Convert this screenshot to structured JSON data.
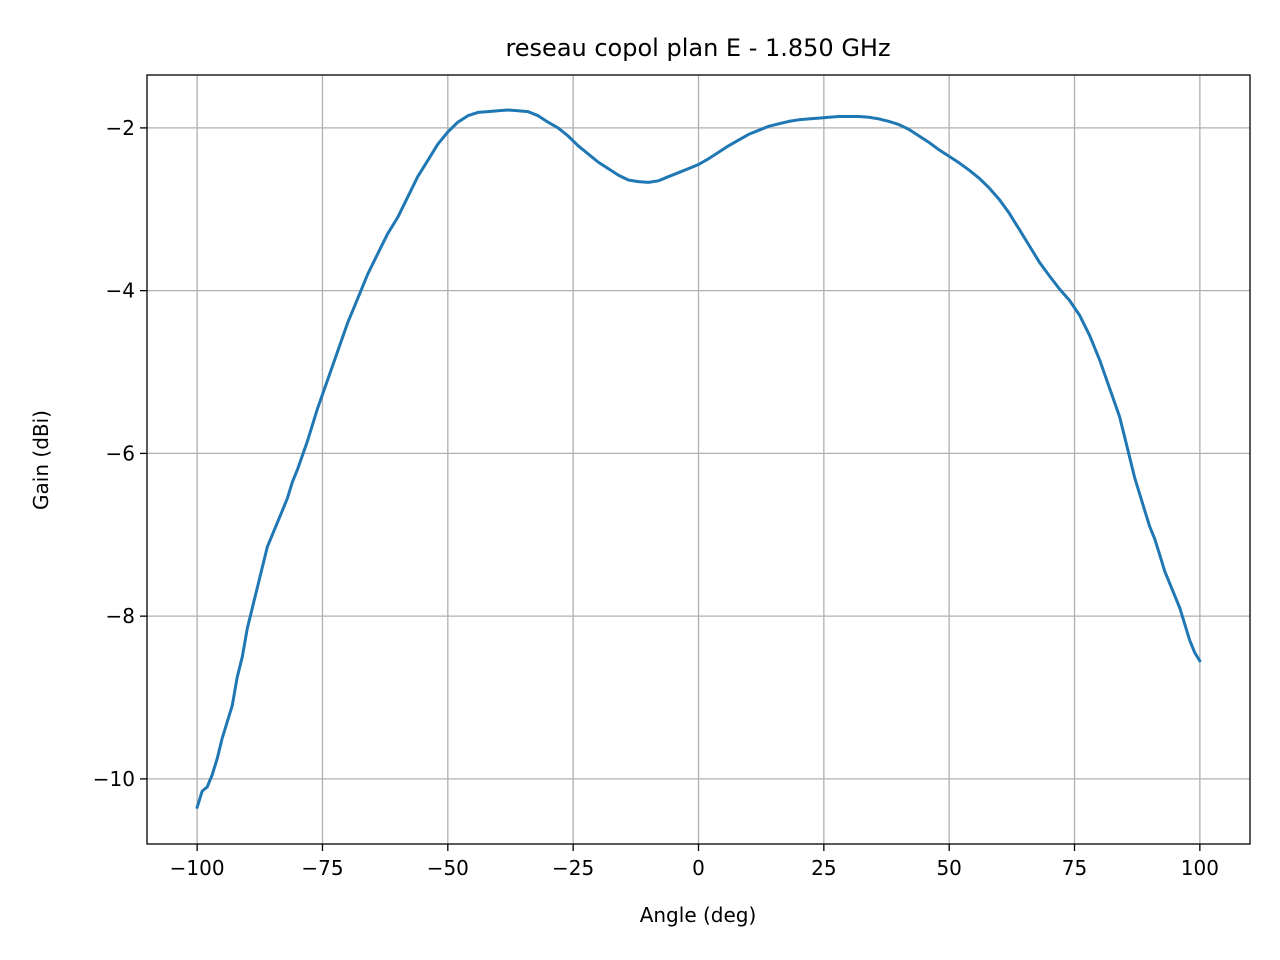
{
  "chart_data": {
    "type": "line",
    "title": "reseau copol plan E - 1.850 GHz",
    "xlabel": "Angle (deg)",
    "ylabel": "Gain (dBi)",
    "xlim": [
      -110,
      110
    ],
    "ylim": [
      -10.8,
      -1.35
    ],
    "grid": true,
    "line_color": "#1f77b4",
    "grid_color": "#b0b0b0",
    "x_ticks": [
      -100,
      -75,
      -50,
      -25,
      0,
      25,
      50,
      75,
      100
    ],
    "x_tick_labels": [
      "−100",
      "−75",
      "−50",
      "−25",
      "0",
      "25",
      "50",
      "75",
      "100"
    ],
    "y_ticks": [
      -10,
      -8,
      -6,
      -4,
      -2
    ],
    "y_tick_labels": [
      "−10",
      "−8",
      "−6",
      "−4",
      "−2"
    ],
    "series": [
      {
        "x": [
          -100,
          -99,
          -98,
          -97,
          -96,
          -95,
          -94,
          -93,
          -92,
          -91,
          -90,
          -89,
          -88,
          -87,
          -86,
          -85,
          -84,
          -83,
          -82,
          -81,
          -80,
          -78,
          -76,
          -74,
          -72,
          -70,
          -68,
          -66,
          -64,
          -62,
          -60,
          -58,
          -56,
          -54,
          -52,
          -50,
          -48,
          -46,
          -44,
          -42,
          -40,
          -38,
          -36,
          -34,
          -32,
          -30,
          -28,
          -26,
          -24,
          -22,
          -20,
          -18,
          -16,
          -14,
          -12,
          -10,
          -8,
          -6,
          -4,
          -2,
          0,
          2,
          4,
          6,
          8,
          10,
          12,
          14,
          16,
          18,
          20,
          22,
          24,
          26,
          28,
          30,
          32,
          34,
          36,
          38,
          40,
          42,
          44,
          46,
          48,
          50,
          52,
          54,
          56,
          58,
          60,
          62,
          64,
          66,
          68,
          70,
          72,
          74,
          76,
          78,
          80,
          82,
          84,
          85,
          86,
          87,
          88,
          89,
          90,
          91,
          92,
          93,
          94,
          95,
          96,
          97,
          98,
          99,
          100
        ],
        "y": [
          -10.35,
          -10.15,
          -10.1,
          -9.95,
          -9.75,
          -9.5,
          -9.3,
          -9.1,
          -8.75,
          -8.5,
          -8.15,
          -7.9,
          -7.65,
          -7.4,
          -7.15,
          -7.0,
          -6.85,
          -6.7,
          -6.55,
          -6.35,
          -6.2,
          -5.85,
          -5.45,
          -5.1,
          -4.75,
          -4.4,
          -4.1,
          -3.8,
          -3.55,
          -3.3,
          -3.1,
          -2.85,
          -2.6,
          -2.4,
          -2.2,
          -2.05,
          -1.93,
          -1.85,
          -1.81,
          -1.8,
          -1.79,
          -1.78,
          -1.79,
          -1.8,
          -1.85,
          -1.93,
          -2.0,
          -2.1,
          -2.22,
          -2.32,
          -2.42,
          -2.5,
          -2.58,
          -2.64,
          -2.66,
          -2.67,
          -2.65,
          -2.6,
          -2.55,
          -2.5,
          -2.45,
          -2.38,
          -2.3,
          -2.22,
          -2.15,
          -2.08,
          -2.03,
          -1.98,
          -1.95,
          -1.92,
          -1.9,
          -1.89,
          -1.88,
          -1.87,
          -1.86,
          -1.86,
          -1.86,
          -1.87,
          -1.89,
          -1.92,
          -1.96,
          -2.02,
          -2.1,
          -2.18,
          -2.27,
          -2.35,
          -2.43,
          -2.52,
          -2.62,
          -2.74,
          -2.88,
          -3.05,
          -3.25,
          -3.45,
          -3.65,
          -3.82,
          -3.98,
          -4.12,
          -4.3,
          -4.55,
          -4.85,
          -5.2,
          -5.55,
          -5.8,
          -6.05,
          -6.3,
          -6.5,
          -6.7,
          -6.9,
          -7.05,
          -7.25,
          -7.45,
          -7.6,
          -7.75,
          -7.9,
          -8.1,
          -8.3,
          -8.45,
          -8.55
        ]
      }
    ]
  }
}
